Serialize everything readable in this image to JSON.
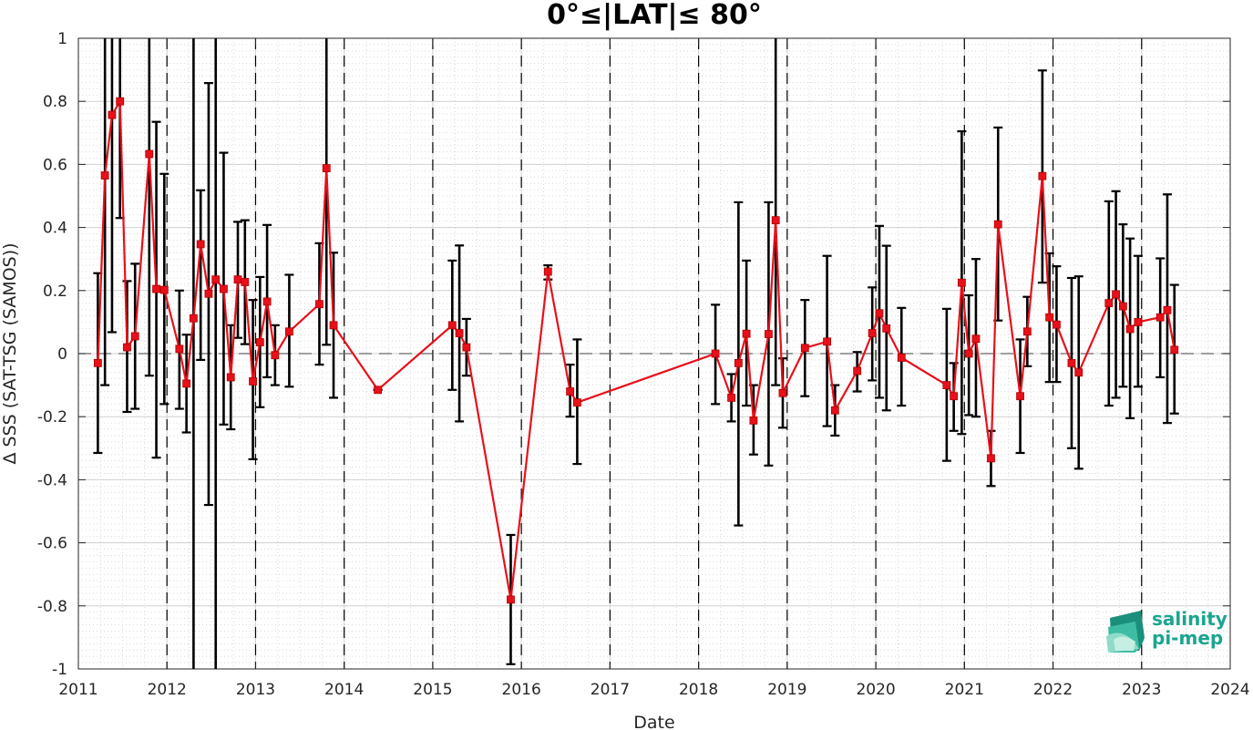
{
  "chart_data": {
    "type": "line",
    "title": "0°≤|LAT|≤ 80°",
    "xlabel": "Date",
    "ylabel": "Δ SSS (SAT-TSG (SAMOS))",
    "xlim": [
      2011,
      2024
    ],
    "ylim": [
      -1,
      1
    ],
    "xticks": [
      "2011",
      "2012",
      "2013",
      "2014",
      "2015",
      "2016",
      "2017",
      "2018",
      "2019",
      "2020",
      "2021",
      "2022",
      "2023",
      "2024"
    ],
    "yticks": [
      "-1",
      "-0.8",
      "-0.6",
      "-0.4",
      "-0.2",
      "0",
      "0.2",
      "0.4",
      "0.6",
      "0.8",
      "1"
    ],
    "grid": true,
    "minor_grid": true,
    "zero_line": true,
    "year_boundary_lines": true,
    "colors": {
      "series": "#e8101a",
      "errorbar": "#000000",
      "grid": "#d9d9d9"
    },
    "series": [
      {
        "marker": "square",
        "x": [
          2011.22,
          2011.3,
          2011.38,
          2011.47,
          2011.55,
          2011.64,
          2011.8,
          2011.88,
          2011.97,
          2012.14,
          2012.22,
          2012.3,
          2012.38,
          2012.47,
          2012.55,
          2012.64,
          2012.72,
          2012.8,
          2012.88,
          2012.97,
          2013.05,
          2013.13,
          2013.22,
          2013.38,
          2013.72,
          2013.8,
          2013.88,
          2014.38,
          2015.22,
          2015.3,
          2015.38,
          2015.88,
          2016.3,
          2016.55,
          2016.63,
          2018.19,
          2018.37,
          2018.45,
          2018.54,
          2018.62,
          2018.79,
          2018.87,
          2018.95,
          2019.2,
          2019.45,
          2019.54,
          2019.79,
          2019.96,
          2020.04,
          2020.12,
          2020.29,
          2020.8,
          2020.88,
          2020.97,
          2021.05,
          2021.13,
          2021.3,
          2021.38,
          2021.63,
          2021.71,
          2021.88,
          2021.96,
          2022.04,
          2022.21,
          2022.29,
          2022.63,
          2022.71,
          2022.79,
          2022.87,
          2022.96,
          2023.21,
          2023.29,
          2023.37
        ],
        "y": [
          -0.03,
          0.565,
          0.757,
          0.8,
          0.02,
          0.055,
          0.633,
          0.205,
          0.202,
          0.015,
          -0.095,
          0.112,
          0.347,
          0.19,
          0.235,
          0.205,
          -0.075,
          0.235,
          0.227,
          -0.088,
          0.036,
          0.165,
          -0.005,
          0.07,
          0.157,
          0.588,
          0.09,
          -0.115,
          0.09,
          0.065,
          0.02,
          -0.78,
          0.26,
          -0.12,
          -0.155,
          0,
          -0.14,
          -0.03,
          0.063,
          -0.212,
          0.062,
          0.423,
          -0.125,
          0.018,
          0.038,
          -0.18,
          -0.055,
          0.065,
          0.128,
          0.08,
          -0.013,
          -0.1,
          -0.135,
          0.225,
          0,
          0.047,
          -0.332,
          0.41,
          -0.135,
          0.07,
          0.563,
          0.115,
          0.092,
          -0.03,
          -0.06,
          0.16,
          0.188,
          0.15,
          0.078,
          0.1,
          0.115,
          0.138,
          0.012
        ],
        "err_low": [
          -0.315,
          -0.1,
          0.068,
          0.43,
          -0.185,
          -0.175,
          -0.07,
          -0.33,
          -0.16,
          -0.175,
          -0.25,
          -1,
          -0.02,
          -0.48,
          -1,
          -0.225,
          -0.24,
          0.05,
          0.03,
          -0.335,
          -0.17,
          -0.075,
          -0.1,
          -0.105,
          -0.035,
          0.028,
          -0.14,
          -0.115,
          -0.115,
          -0.215,
          -0.07,
          -0.985,
          0.235,
          -0.2,
          -0.35,
          -0.16,
          -0.215,
          -0.545,
          -0.165,
          -0.32,
          -0.355,
          -0.1,
          -0.235,
          -0.135,
          -0.23,
          -0.26,
          -0.12,
          -0.085,
          -0.14,
          -0.18,
          -0.165,
          -0.34,
          -0.245,
          -0.255,
          -0.195,
          -0.2,
          -0.42,
          0.105,
          -0.315,
          -0.04,
          0.225,
          -0.09,
          -0.09,
          -0.3,
          -0.365,
          -0.165,
          -0.14,
          -0.105,
          -0.205,
          -0.105,
          -0.075,
          -0.22,
          -0.19
        ],
        "err_high": [
          0.255,
          1,
          1,
          1,
          0.23,
          0.285,
          1,
          0.735,
          0.57,
          0.2,
          0.06,
          1,
          0.518,
          0.858,
          1,
          0.637,
          0.09,
          0.418,
          0.423,
          0.17,
          0.243,
          0.408,
          0.09,
          0.25,
          0.35,
          1,
          0.32,
          -0.115,
          0.295,
          0.343,
          0.11,
          -0.575,
          0.28,
          -0.035,
          0.045,
          0.155,
          -0.065,
          0.48,
          0.295,
          -0.1,
          0.48,
          1,
          -0.015,
          0.17,
          0.31,
          -0.1,
          0.005,
          0.21,
          0.405,
          0.342,
          0.145,
          0.142,
          -0.03,
          0.705,
          0.185,
          0.3,
          -0.245,
          0.717,
          0.045,
          0.18,
          0.898,
          0.318,
          0.277,
          0.24,
          0.245,
          0.483,
          0.515,
          0.41,
          0.365,
          0.31,
          0.302,
          0.505,
          0.218
        ]
      }
    ]
  },
  "logo": {
    "line1": "salinity",
    "line2": "pi-mep"
  }
}
